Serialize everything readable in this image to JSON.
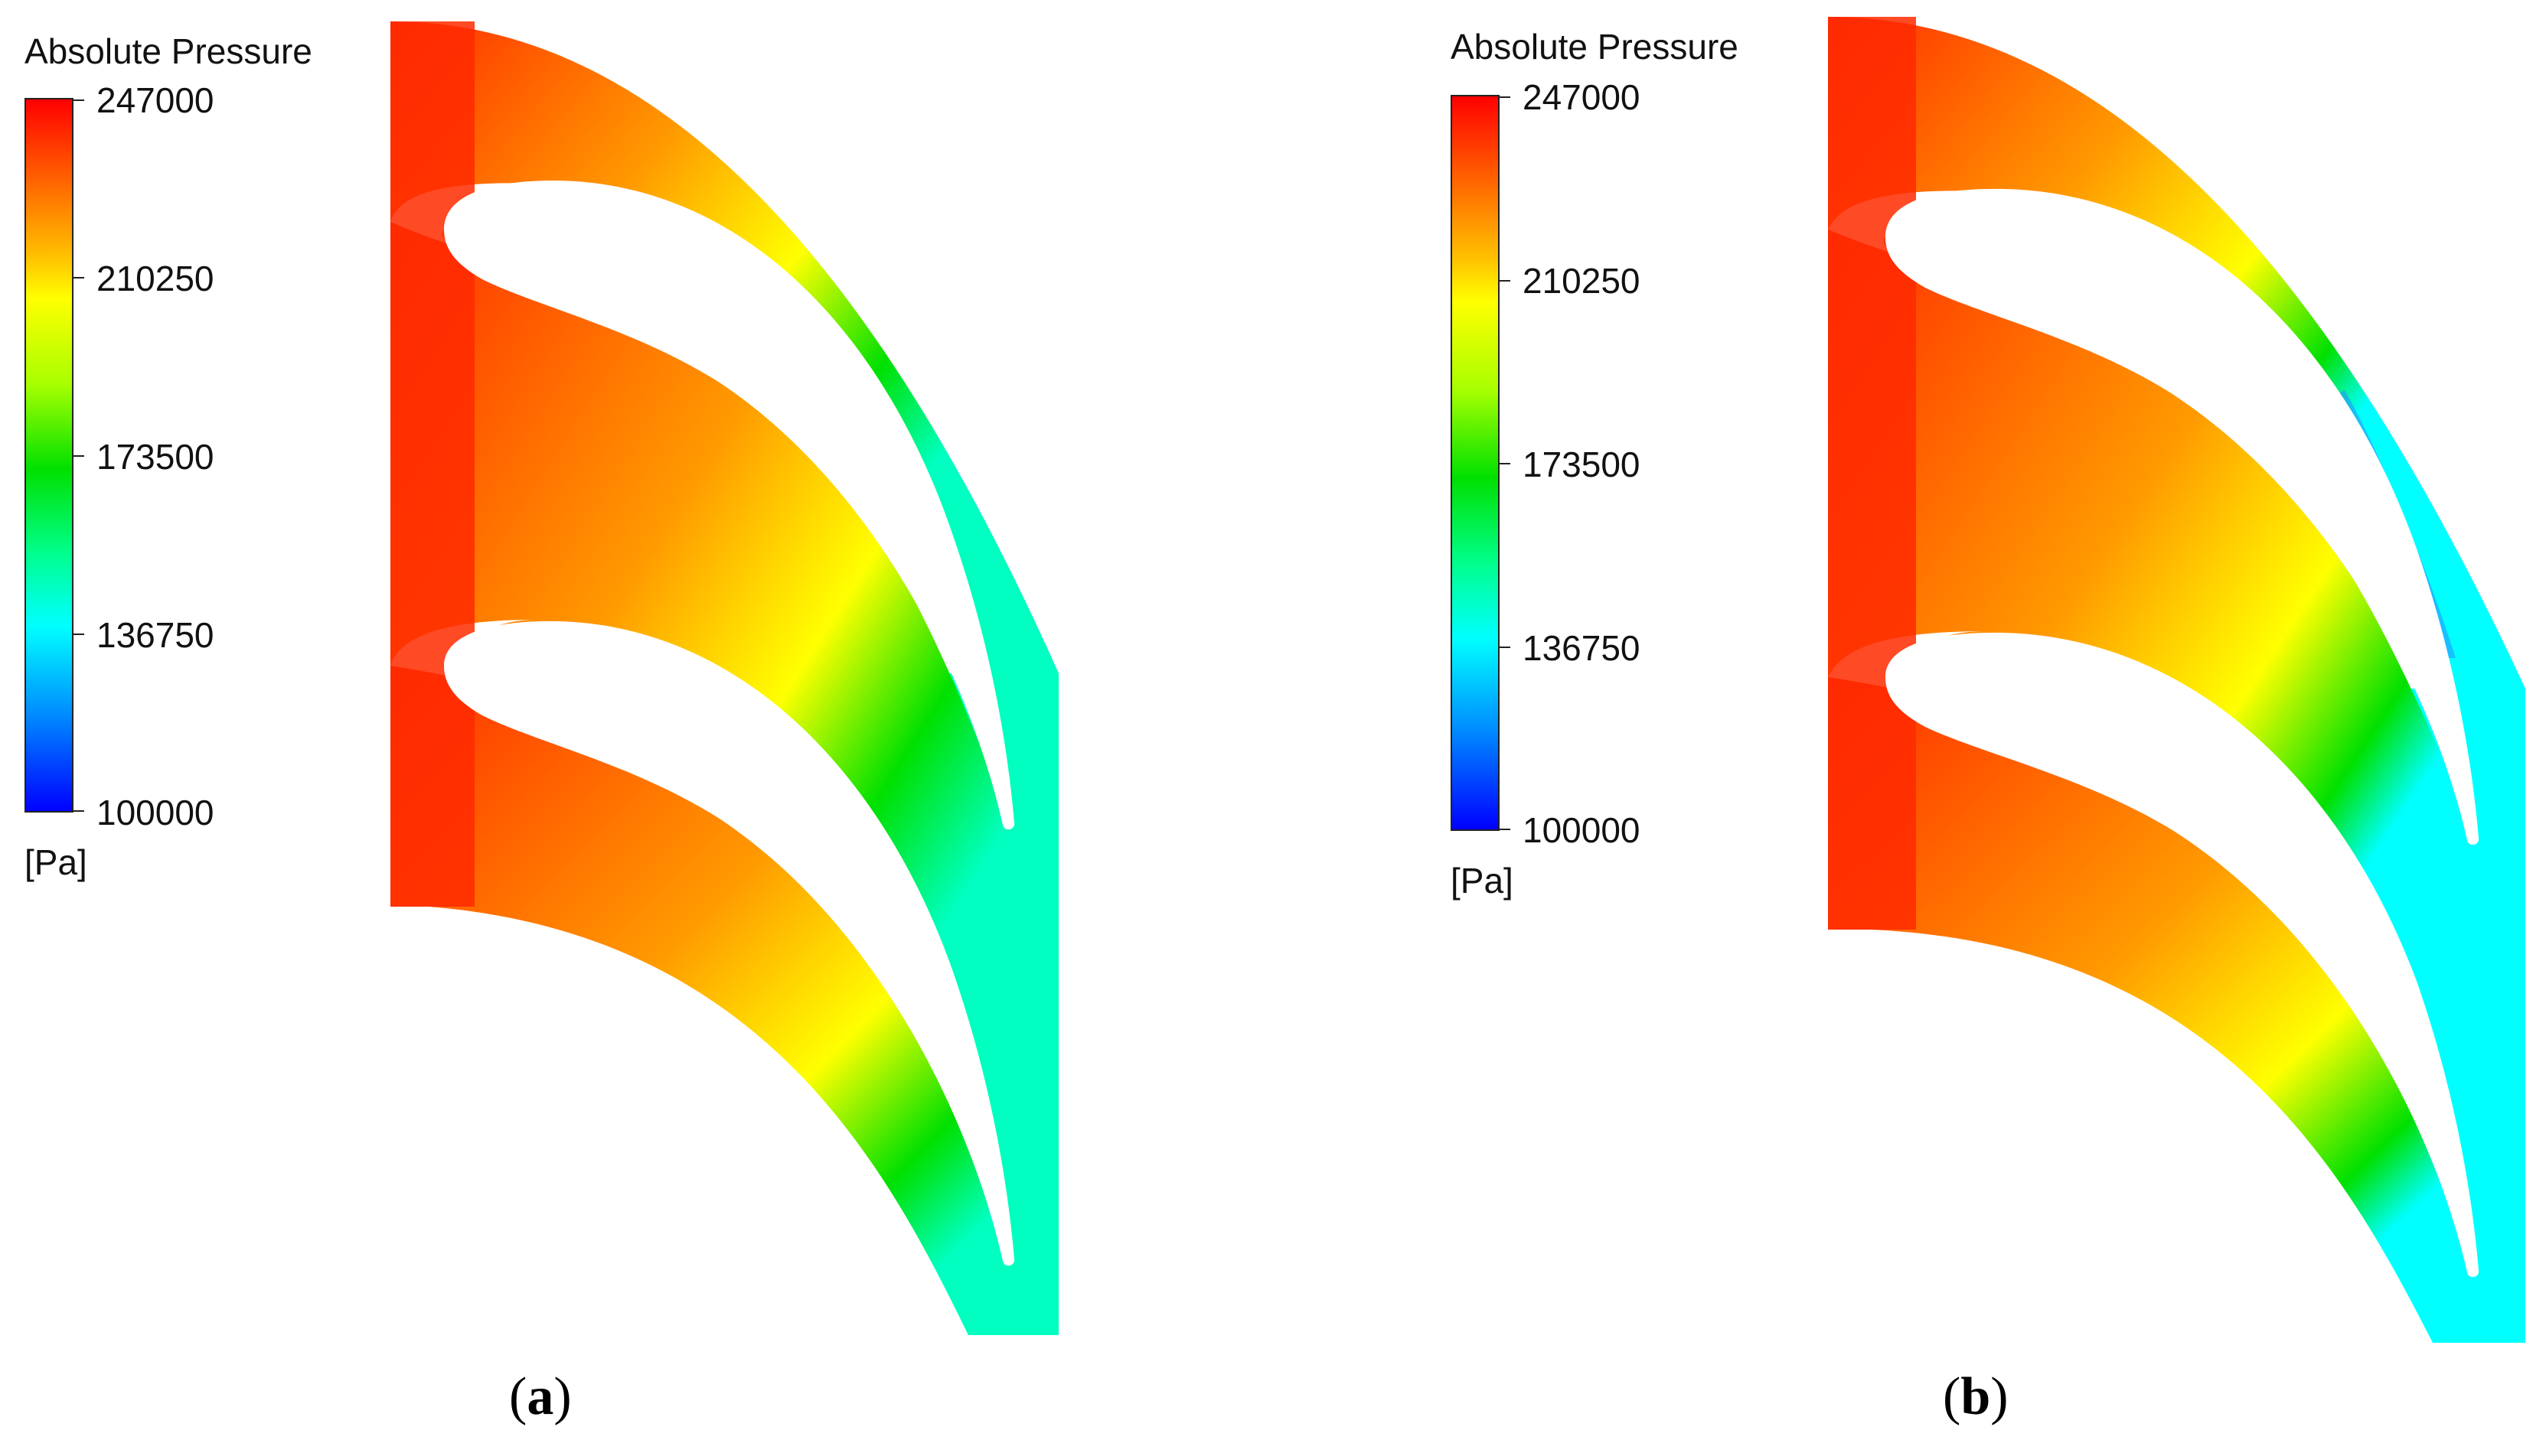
{
  "panels": [
    {
      "legend_title": "Absolute Pressure",
      "unit": "[Pa]",
      "ticks": [
        "247000",
        "210250",
        "173500",
        "136750",
        "100000"
      ],
      "caption_open": "(",
      "caption_letter": "a",
      "caption_close": ")"
    },
    {
      "legend_title": "Absolute Pressure",
      "unit": "[Pa]",
      "ticks": [
        "247000",
        "210250",
        "173500",
        "136750",
        "100000"
      ],
      "caption_open": "(",
      "caption_letter": "b",
      "caption_close": ")"
    }
  ],
  "colors": {
    "high": "#ff0000",
    "orange": "#ff8000",
    "yellow": "#ffff00",
    "green": "#00e000",
    "aqua": "#00ffc0",
    "cyan": "#00ffff",
    "low": "#0000ff"
  }
}
